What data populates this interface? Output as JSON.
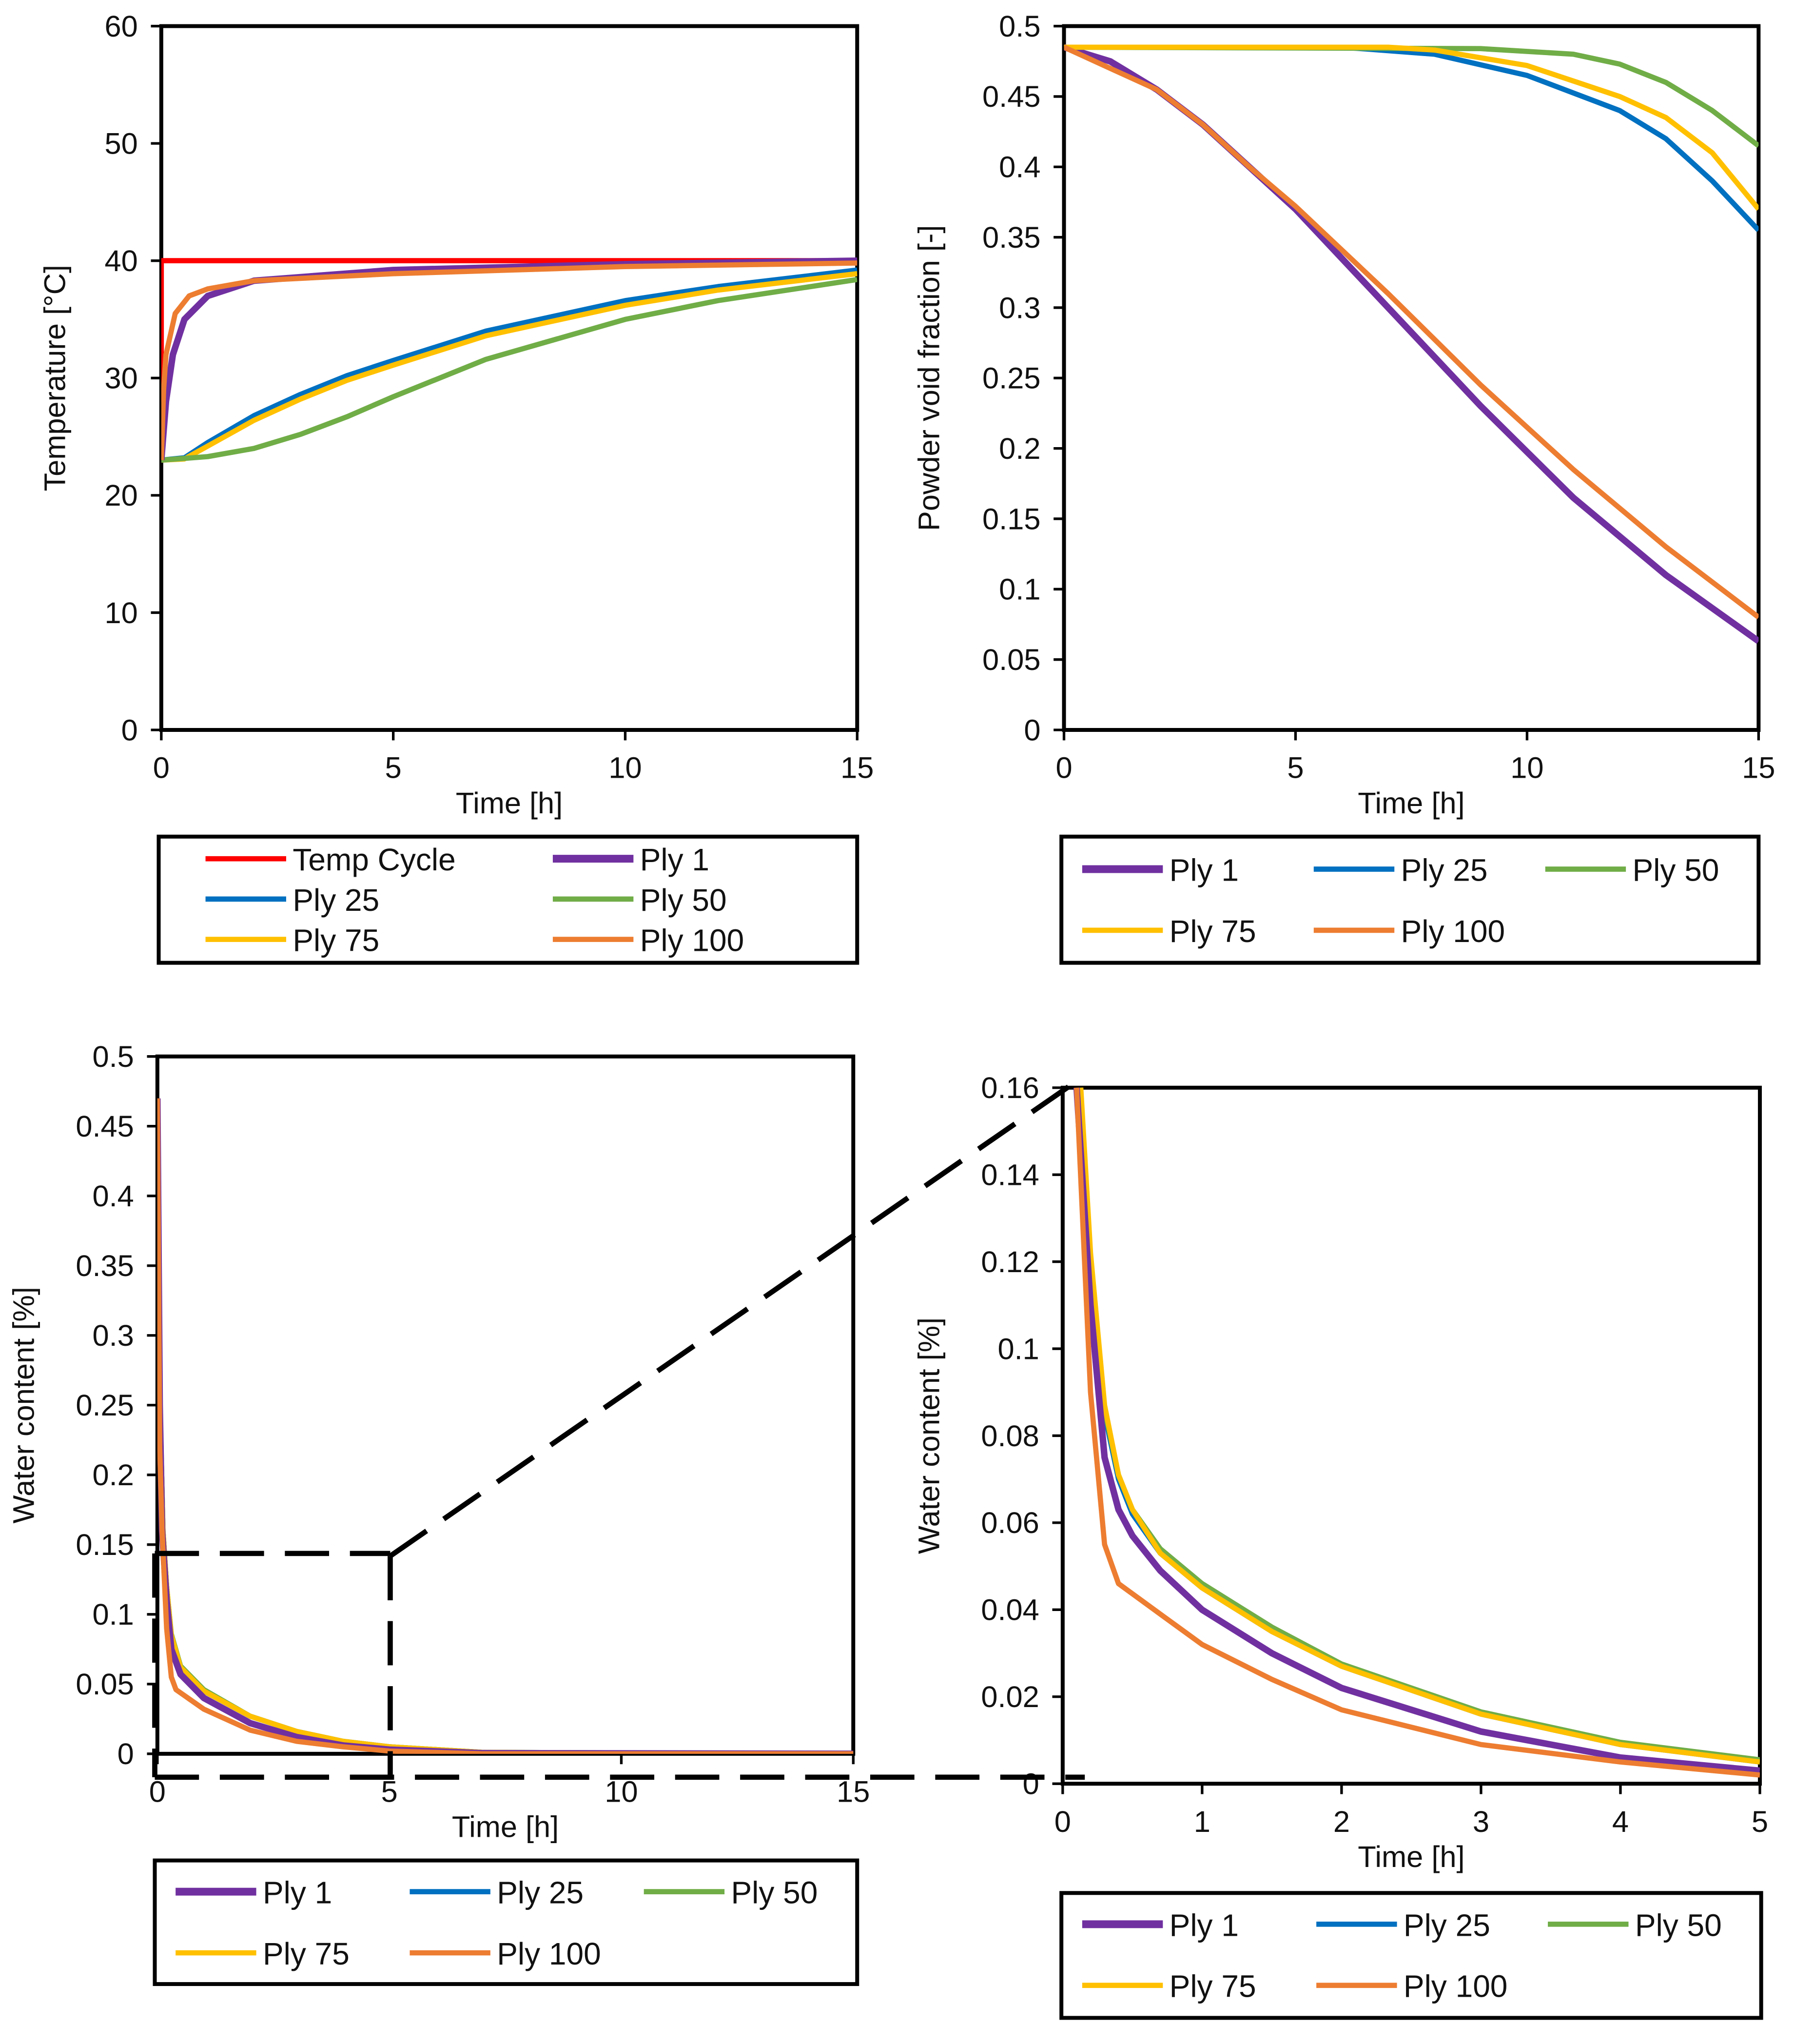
{
  "colors": {
    "Temp Cycle": "#FF0000",
    "Ply 1": "#7030A0",
    "Ply 25": "#0070C0",
    "Ply 50": "#70AD47",
    "Ply 75": "#FFC000",
    "Ply 100": "#ED7D31"
  },
  "chart_data": [
    {
      "type": "line",
      "xlabel": "Time  [h]",
      "ylabel": "Temperature  [°C]",
      "xlim": [
        0,
        15
      ],
      "ylim": [
        0,
        60
      ],
      "xticks": [
        "0",
        "5",
        "10",
        "15"
      ],
      "yticks": [
        "0",
        "10",
        "20",
        "30",
        "40",
        "50",
        "60"
      ],
      "grid": false,
      "legend": "bottom",
      "legend_order": [
        "Temp Cycle",
        "Ply 1",
        "Ply 25",
        "Ply 50",
        "Ply 75",
        "Ply 100"
      ],
      "series": [
        {
          "name": "Temp Cycle",
          "points": [
            [
              0,
              28
            ],
            [
              0,
              40
            ],
            [
              15,
              40
            ]
          ]
        },
        {
          "name": "Ply 25",
          "points": [
            [
              0,
              23
            ],
            [
              0.5,
              23.2
            ],
            [
              1,
              24.5
            ],
            [
              2,
              26.8
            ],
            [
              3,
              28.6
            ],
            [
              4,
              30.2
            ],
            [
              5,
              31.5
            ],
            [
              7,
              34
            ],
            [
              10,
              36.6
            ],
            [
              12,
              37.8
            ],
            [
              15,
              39.2
            ]
          ]
        },
        {
          "name": "Ply 75",
          "points": [
            [
              0,
              23
            ],
            [
              0.5,
              23.1
            ],
            [
              1,
              24.2
            ],
            [
              2,
              26.4
            ],
            [
              3,
              28.2
            ],
            [
              4,
              29.8
            ],
            [
              5,
              31.1
            ],
            [
              7,
              33.6
            ],
            [
              10,
              36.2
            ],
            [
              12,
              37.5
            ],
            [
              15,
              38.9
            ]
          ]
        },
        {
          "name": "Ply 50",
          "points": [
            [
              0,
              23
            ],
            [
              1,
              23.3
            ],
            [
              2,
              24
            ],
            [
              3,
              25.2
            ],
            [
              4,
              26.7
            ],
            [
              5,
              28.4
            ],
            [
              7,
              31.6
            ],
            [
              10,
              35
            ],
            [
              12,
              36.6
            ],
            [
              15,
              38.4
            ]
          ]
        },
        {
          "name": "Ply 1",
          "points": [
            [
              0,
              23
            ],
            [
              0.1,
              28
            ],
            [
              0.25,
              32
            ],
            [
              0.5,
              35
            ],
            [
              1,
              37
            ],
            [
              2,
              38.3
            ],
            [
              5,
              39.2
            ],
            [
              10,
              39.7
            ],
            [
              15,
              40
            ]
          ]
        },
        {
          "name": "Ply 100",
          "points": [
            [
              0,
              23
            ],
            [
              0.05,
              29
            ],
            [
              0.1,
              32
            ],
            [
              0.3,
              35.5
            ],
            [
              0.6,
              37
            ],
            [
              1,
              37.6
            ],
            [
              2,
              38.3
            ],
            [
              5,
              38.9
            ],
            [
              10,
              39.5
            ],
            [
              15,
              39.8
            ]
          ]
        }
      ]
    },
    {
      "type": "line",
      "xlabel": "Time  [h]",
      "ylabel": "Powder void fraction [-]",
      "xlim": [
        0,
        15
      ],
      "ylim": [
        0,
        0.5
      ],
      "xticks": [
        "0",
        "5",
        "10",
        "15"
      ],
      "yticks": [
        "0",
        "0.05",
        "0.1",
        "0.15",
        "0.2",
        "0.25",
        "0.3",
        "0.35",
        "0.4",
        "0.45",
        "0.5"
      ],
      "grid": false,
      "legend": "bottom",
      "legend_order": [
        "Ply 1",
        "Ply 25",
        "Ply 50",
        "Ply 75",
        "Ply 100"
      ],
      "series": [
        {
          "name": "Ply 1",
          "points": [
            [
              0,
              0.485
            ],
            [
              1,
              0.475
            ],
            [
              2,
              0.455
            ],
            [
              3,
              0.43
            ],
            [
              4,
              0.4
            ],
            [
              5,
              0.37
            ],
            [
              7,
              0.3
            ],
            [
              9,
              0.23
            ],
            [
              11,
              0.165
            ],
            [
              13,
              0.11
            ],
            [
              15,
              0.063
            ]
          ]
        },
        {
          "name": "Ply 25",
          "points": [
            [
              0,
              0.485
            ],
            [
              6,
              0.485
            ],
            [
              8,
              0.48
            ],
            [
              10,
              0.465
            ],
            [
              12,
              0.44
            ],
            [
              13,
              0.42
            ],
            [
              14,
              0.39
            ],
            [
              15,
              0.355
            ]
          ]
        },
        {
          "name": "Ply 50",
          "points": [
            [
              0,
              0.485
            ],
            [
              9,
              0.484
            ],
            [
              11,
              0.48
            ],
            [
              12,
              0.473
            ],
            [
              13,
              0.46
            ],
            [
              14,
              0.44
            ],
            [
              15,
              0.415
            ]
          ]
        },
        {
          "name": "Ply 75",
          "points": [
            [
              0,
              0.485
            ],
            [
              7,
              0.485
            ],
            [
              8,
              0.483
            ],
            [
              10,
              0.472
            ],
            [
              12,
              0.45
            ],
            [
              13,
              0.435
            ],
            [
              14,
              0.41
            ],
            [
              15,
              0.37
            ]
          ]
        },
        {
          "name": "Ply 100",
          "points": [
            [
              0,
              0.485
            ],
            [
              1,
              0.47
            ],
            [
              2,
              0.455
            ],
            [
              3,
              0.43
            ],
            [
              4,
              0.4
            ],
            [
              5,
              0.372
            ],
            [
              7,
              0.31
            ],
            [
              9,
              0.245
            ],
            [
              11,
              0.185
            ],
            [
              13,
              0.13
            ],
            [
              15,
              0.08
            ]
          ]
        }
      ]
    },
    {
      "type": "line",
      "xlabel": "Time  [h]",
      "ylabel": "Water content [%]",
      "xlim": [
        0,
        15
      ],
      "ylim": [
        0,
        0.5
      ],
      "xticks": [
        "0",
        "5",
        "10",
        "15"
      ],
      "yticks": [
        "0",
        "0.05",
        "0.1",
        "0.15",
        "0.2",
        "0.25",
        "0.3",
        "0.35",
        "0.4",
        "0.45",
        "0.5"
      ],
      "grid": false,
      "legend": "bottom",
      "legend_order": [
        "Ply 1",
        "Ply 25",
        "Ply 50",
        "Ply 75",
        "Ply 100"
      ],
      "series": [
        {
          "name": "Ply 25",
          "points": [
            [
              0,
              0.47
            ],
            [
              0.05,
              0.26
            ],
            [
              0.12,
              0.16
            ],
            [
              0.2,
              0.12
            ],
            [
              0.3,
              0.085
            ],
            [
              0.5,
              0.062
            ],
            [
              1,
              0.045
            ],
            [
              2,
              0.027
            ],
            [
              3,
              0.016
            ],
            [
              4,
              0.009
            ],
            [
              5,
              0.005
            ],
            [
              7,
              0.001
            ],
            [
              15,
              0
            ]
          ]
        },
        {
          "name": "Ply 50",
          "points": [
            [
              0,
              0.47
            ],
            [
              0.05,
              0.26
            ],
            [
              0.12,
              0.16
            ],
            [
              0.2,
              0.12
            ],
            [
              0.3,
              0.086
            ],
            [
              0.5,
              0.063
            ],
            [
              1,
              0.046
            ],
            [
              2,
              0.027
            ],
            [
              3,
              0.016
            ],
            [
              4,
              0.009
            ],
            [
              5,
              0.005
            ],
            [
              7,
              0.001
            ],
            [
              15,
              0
            ]
          ]
        },
        {
          "name": "Ply 75",
          "points": [
            [
              0,
              0.47
            ],
            [
              0.05,
              0.26
            ],
            [
              0.12,
              0.16
            ],
            [
              0.2,
              0.12
            ],
            [
              0.3,
              0.085
            ],
            [
              0.5,
              0.062
            ],
            [
              1,
              0.045
            ],
            [
              2,
              0.027
            ],
            [
              3,
              0.016
            ],
            [
              4,
              0.009
            ],
            [
              5,
              0.005
            ],
            [
              7,
              0.001
            ],
            [
              15,
              0
            ]
          ]
        },
        {
          "name": "Ply 1",
          "points": [
            [
              0,
              0.47
            ],
            [
              0.05,
              0.25
            ],
            [
              0.1,
              0.16
            ],
            [
              0.2,
              0.11
            ],
            [
              0.3,
              0.075
            ],
            [
              0.5,
              0.057
            ],
            [
              1,
              0.04
            ],
            [
              2,
              0.022
            ],
            [
              3,
              0.012
            ],
            [
              4,
              0.006
            ],
            [
              5,
              0.003
            ],
            [
              7,
              0.0005
            ],
            [
              15,
              0
            ]
          ]
        },
        {
          "name": "Ply 100",
          "points": [
            [
              0,
              0.47
            ],
            [
              0.05,
              0.22
            ],
            [
              0.1,
              0.16
            ],
            [
              0.2,
              0.09
            ],
            [
              0.3,
              0.055
            ],
            [
              0.4,
              0.046
            ],
            [
              1,
              0.032
            ],
            [
              2,
              0.017
            ],
            [
              3,
              0.009
            ],
            [
              4,
              0.005
            ],
            [
              5,
              0.002
            ],
            [
              7,
              0
            ],
            [
              15,
              0
            ]
          ]
        }
      ]
    },
    {
      "type": "line",
      "xlabel": "Time  [h]",
      "ylabel": "Water content [%]",
      "xlim": [
        0,
        5
      ],
      "ylim": [
        0,
        0.16
      ],
      "xticks": [
        "0",
        "1",
        "2",
        "3",
        "4",
        "5"
      ],
      "yticks": [
        "0",
        "0.02",
        "0.04",
        "0.06",
        "0.08",
        "0.1",
        "0.12",
        "0.14",
        "0.16"
      ],
      "grid": false,
      "legend": "bottom",
      "legend_order": [
        "Ply 1",
        "Ply 25",
        "Ply 50",
        "Ply 75",
        "Ply 100"
      ],
      "series": [
        {
          "name": "Ply 25",
          "points": [
            [
              0.12,
              0.16
            ],
            [
              0.2,
              0.12
            ],
            [
              0.3,
              0.085
            ],
            [
              0.4,
              0.07
            ],
            [
              0.5,
              0.062
            ],
            [
              0.7,
              0.053
            ],
            [
              1,
              0.045
            ],
            [
              1.5,
              0.035
            ],
            [
              2,
              0.027
            ],
            [
              3,
              0.016
            ],
            [
              4,
              0.009
            ],
            [
              5,
              0.005
            ]
          ]
        },
        {
          "name": "Ply 50",
          "points": [
            [
              0.12,
              0.16
            ],
            [
              0.2,
              0.12
            ],
            [
              0.3,
              0.086
            ],
            [
              0.4,
              0.071
            ],
            [
              0.5,
              0.063
            ],
            [
              0.7,
              0.054
            ],
            [
              1,
              0.046
            ],
            [
              1.5,
              0.036
            ],
            [
              2,
              0.0275
            ],
            [
              3,
              0.0165
            ],
            [
              4,
              0.0095
            ],
            [
              5,
              0.0055
            ]
          ]
        },
        {
          "name": "Ply 75",
          "points": [
            [
              0.13,
              0.16
            ],
            [
              0.2,
              0.122
            ],
            [
              0.3,
              0.087
            ],
            [
              0.4,
              0.071
            ],
            [
              0.5,
              0.063
            ],
            [
              0.7,
              0.053
            ],
            [
              1,
              0.045
            ],
            [
              1.5,
              0.035
            ],
            [
              2,
              0.027
            ],
            [
              3,
              0.016
            ],
            [
              4,
              0.009
            ],
            [
              5,
              0.005
            ]
          ]
        },
        {
          "name": "Ply 1",
          "points": [
            [
              0.1,
              0.16
            ],
            [
              0.2,
              0.11
            ],
            [
              0.3,
              0.075
            ],
            [
              0.4,
              0.063
            ],
            [
              0.5,
              0.057
            ],
            [
              0.7,
              0.049
            ],
            [
              1,
              0.04
            ],
            [
              1.5,
              0.03
            ],
            [
              2,
              0.022
            ],
            [
              3,
              0.012
            ],
            [
              4,
              0.006
            ],
            [
              5,
              0.003
            ]
          ]
        },
        {
          "name": "Ply 100",
          "points": [
            [
              0.1,
              0.16
            ],
            [
              0.2,
              0.09
            ],
            [
              0.3,
              0.055
            ],
            [
              0.4,
              0.046
            ],
            [
              0.7,
              0.039
            ],
            [
              1,
              0.032
            ],
            [
              1.5,
              0.024
            ],
            [
              2,
              0.017
            ],
            [
              3,
              0.009
            ],
            [
              4,
              0.005
            ],
            [
              5,
              0.002
            ]
          ]
        }
      ]
    }
  ]
}
